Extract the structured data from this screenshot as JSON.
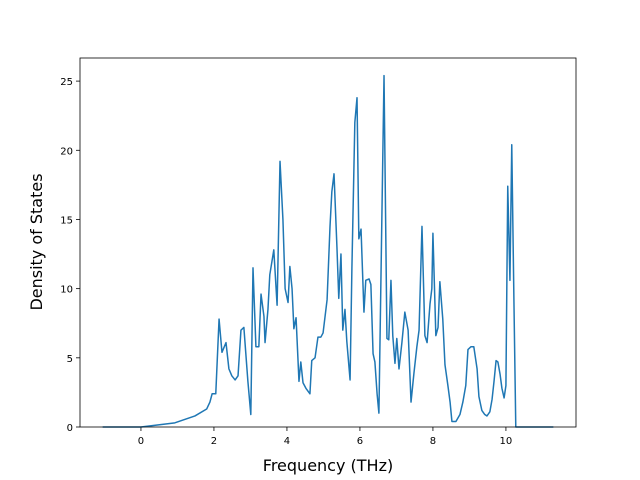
{
  "chart_data": {
    "type": "line",
    "xlabel": "Frequency (THz)",
    "ylabel": "Density of States",
    "xlim": [
      -1.67,
      11.92
    ],
    "ylim": [
      0,
      26.67
    ],
    "xticks": [
      0,
      2,
      4,
      6,
      8,
      10
    ],
    "yticks": [
      0,
      5,
      10,
      15,
      20,
      25
    ],
    "grid": false,
    "series": [
      {
        "color": "#1f77b4",
        "x": [
          -1.05,
          0,
          0.93,
          1.48,
          1.8,
          1.89,
          1.95,
          2.05,
          2.14,
          2.22,
          2.33,
          2.41,
          2.49,
          2.58,
          2.66,
          2.74,
          2.82,
          2.93,
          3.01,
          3.07,
          3.15,
          3.23,
          3.29,
          3.37,
          3.4,
          3.48,
          3.53,
          3.64,
          3.73,
          3.81,
          3.89,
          3.95,
          4.03,
          4.08,
          4.14,
          4.19,
          4.25,
          4.33,
          4.38,
          4.44,
          4.52,
          4.63,
          4.68,
          4.77,
          4.85,
          4.93,
          4.99,
          5.1,
          5.18,
          5.23,
          5.29,
          5.37,
          5.42,
          5.48,
          5.53,
          5.59,
          5.64,
          5.73,
          5.78,
          5.86,
          5.92,
          5.97,
          6.03,
          6.11,
          6.16,
          6.25,
          6.3,
          6.36,
          6.41,
          6.47,
          6.52,
          6.66,
          6.74,
          6.79,
          6.85,
          6.9,
          6.96,
          7.01,
          7.07,
          7.15,
          7.23,
          7.32,
          7.4,
          7.48,
          7.56,
          7.62,
          7.7,
          7.78,
          7.84,
          7.92,
          7.97,
          8.0,
          8.08,
          8.14,
          8.19,
          8.27,
          8.33,
          8.41,
          8.47,
          8.52,
          8.63,
          8.74,
          8.82,
          8.9,
          8.96,
          9.04,
          9.12,
          9.21,
          9.26,
          9.34,
          9.42,
          9.48,
          9.56,
          9.62,
          9.67,
          9.73,
          9.78,
          9.84,
          9.89,
          9.95,
          10.0,
          10.05,
          10.11,
          10.16,
          10.22,
          10.27,
          11.3
        ],
        "values": [
          0,
          0,
          0.3,
          0.8,
          1.3,
          1.8,
          2.4,
          2.4,
          7.8,
          5.4,
          6.1,
          4.2,
          3.7,
          3.4,
          3.7,
          7.0,
          7.2,
          3.3,
          0.9,
          11.5,
          5.8,
          5.8,
          9.6,
          8.0,
          6.1,
          8.5,
          11.0,
          12.8,
          8.8,
          19.2,
          15.0,
          10.0,
          9.0,
          11.6,
          10.0,
          7.1,
          7.9,
          3.3,
          4.7,
          3.2,
          2.8,
          2.4,
          4.8,
          5.0,
          6.5,
          6.5,
          6.8,
          9.2,
          14.5,
          17.0,
          18.3,
          13.0,
          9.3,
          12.5,
          7.0,
          8.5,
          6.2,
          3.4,
          11.5,
          22.0,
          23.8,
          13.6,
          14.3,
          8.3,
          10.6,
          10.7,
          10.3,
          5.3,
          4.7,
          2.4,
          1.0,
          25.4,
          6.4,
          6.3,
          10.6,
          6.6,
          4.6,
          6.4,
          4.2,
          6.1,
          8.3,
          7.0,
          1.8,
          3.9,
          5.8,
          7.0,
          14.5,
          6.6,
          6.1,
          8.9,
          10.0,
          14.0,
          6.6,
          7.2,
          10.5,
          7.8,
          4.5,
          3.0,
          1.8,
          0.4,
          0.4,
          0.9,
          1.8,
          3.0,
          5.6,
          5.8,
          5.8,
          4.2,
          2.2,
          1.2,
          0.9,
          0.8,
          1.1,
          2.0,
          3.2,
          4.8,
          4.7,
          3.8,
          2.8,
          2.1,
          3.0,
          17.4,
          10.6,
          20.4,
          9.0,
          0,
          0
        ]
      }
    ]
  }
}
